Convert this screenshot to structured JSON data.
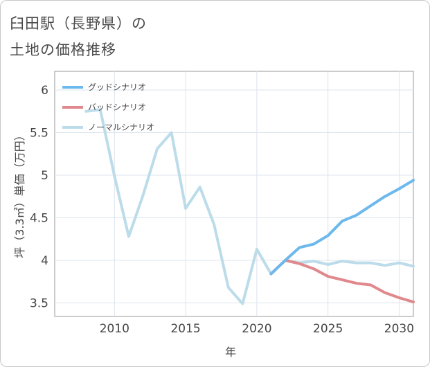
{
  "title_line1": "臼田駅（長野県）の",
  "title_line2": "土地の価格推移",
  "chart_data": {
    "type": "line",
    "xlabel": "年",
    "ylabel": "坪（3.3㎡）単価（万円）",
    "xlim": [
      2005.8,
      2031
    ],
    "ylim": [
      3.34,
      6.22
    ],
    "xticks": [
      2010,
      2015,
      2020,
      2025,
      2030
    ],
    "yticks": [
      3.5,
      4,
      4.5,
      5,
      5.5,
      6
    ],
    "ytick_labels": [
      "3.5",
      "4",
      "4.5",
      "5",
      "5.5",
      "6"
    ],
    "grid": true,
    "legend_position": "top-left",
    "series": [
      {
        "name": "グッドシナリオ",
        "color": "#6db8ec",
        "x": [
          2021,
          2022,
          2023,
          2024,
          2025,
          2026,
          2027,
          2028,
          2029,
          2030,
          2031
        ],
        "y": [
          3.84,
          4.0,
          4.15,
          4.19,
          4.29,
          4.46,
          4.53,
          4.64,
          4.75,
          4.84,
          4.94
        ]
      },
      {
        "name": "バッドシナリオ",
        "color": "#e0888c",
        "x": [
          2021,
          2022,
          2023,
          2024,
          2025,
          2026,
          2027,
          2028,
          2029,
          2030,
          2031
        ],
        "y": [
          3.84,
          4.0,
          3.96,
          3.9,
          3.81,
          3.77,
          3.73,
          3.71,
          3.62,
          3.56,
          3.51
        ]
      },
      {
        "name": "ノーマルシナリオ",
        "color": "#bcdcea",
        "x": [
          2008,
          2009,
          2010,
          2011,
          2012,
          2013,
          2014,
          2015,
          2016,
          2017,
          2018,
          2019,
          2020,
          2021,
          2022,
          2023,
          2024,
          2025,
          2026,
          2027,
          2028,
          2029,
          2030,
          2031
        ],
        "y": [
          5.75,
          5.77,
          4.99,
          4.28,
          4.76,
          5.31,
          5.5,
          4.61,
          4.86,
          4.42,
          3.68,
          3.49,
          4.13,
          3.84,
          4.0,
          3.97,
          3.99,
          3.95,
          3.99,
          3.97,
          3.97,
          3.94,
          3.97,
          3.93
        ]
      }
    ]
  }
}
